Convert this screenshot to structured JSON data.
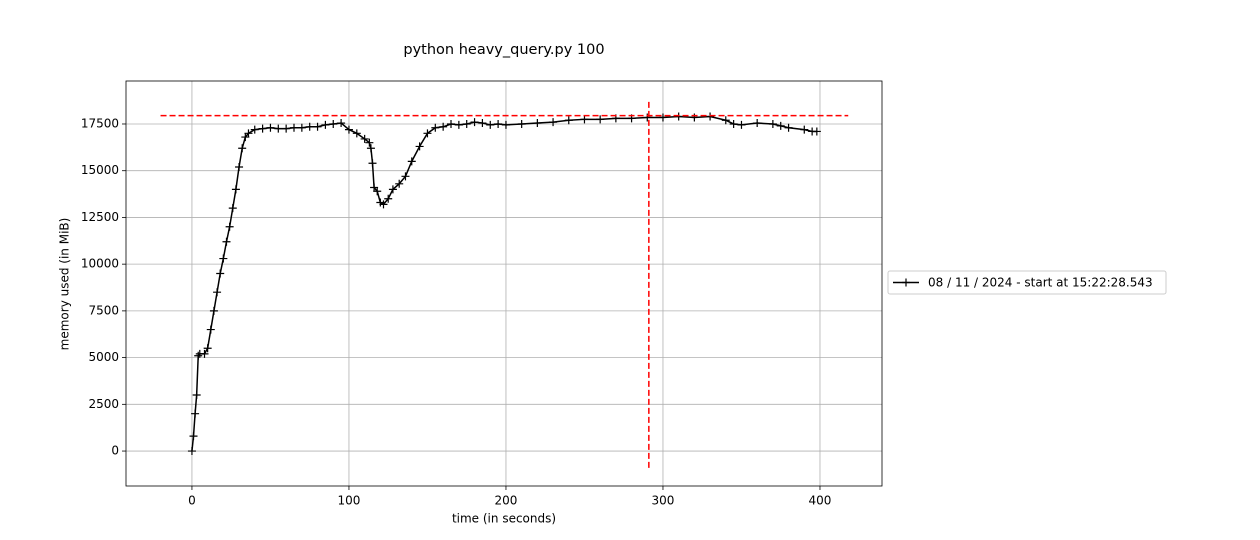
{
  "chart_data": {
    "type": "line",
    "title": "python heavy_query.py 100",
    "x_label": "time (in seconds)",
    "y_label": "memory used (in MiB)",
    "x": [
      0,
      1,
      2,
      3,
      4,
      5,
      8,
      10,
      12,
      14,
      16,
      18,
      20,
      22,
      24,
      26,
      28,
      30,
      32,
      34,
      36,
      40,
      45,
      50,
      55,
      60,
      65,
      70,
      75,
      80,
      85,
      90,
      95,
      100,
      105,
      110,
      113,
      114,
      115,
      116,
      118,
      120,
      122,
      125,
      128,
      132,
      136,
      140,
      145,
      150,
      155,
      160,
      165,
      170,
      175,
      180,
      185,
      190,
      195,
      200,
      210,
      220,
      230,
      240,
      250,
      260,
      270,
      280,
      290,
      300,
      310,
      320,
      330,
      340,
      345,
      350,
      360,
      370,
      375,
      380,
      390,
      395,
      398
    ],
    "series": [
      {
        "name": "08 / 11 / 2024 - start at 15:22:28.543",
        "color": "#000000",
        "values": [
          0,
          800,
          2000,
          3000,
          5100,
          5200,
          5200,
          5500,
          6500,
          7500,
          8500,
          9500,
          10300,
          11200,
          12000,
          13000,
          14000,
          15200,
          16200,
          16800,
          17000,
          17200,
          17250,
          17300,
          17250,
          17250,
          17300,
          17300,
          17350,
          17350,
          17450,
          17500,
          17550,
          17200,
          17000,
          16700,
          16500,
          16200,
          15400,
          14100,
          13900,
          13300,
          13200,
          13500,
          14000,
          14300,
          14700,
          15500,
          16300,
          17000,
          17300,
          17350,
          17500,
          17450,
          17500,
          17600,
          17550,
          17450,
          17500,
          17450,
          17500,
          17550,
          17600,
          17700,
          17750,
          17750,
          17800,
          17800,
          17850,
          17850,
          17900,
          17850,
          17900,
          17700,
          17500,
          17450,
          17550,
          17500,
          17400,
          17300,
          17200,
          17100,
          17100
        ]
      }
    ],
    "hline": {
      "y": 17950,
      "x": [
        -20,
        418
      ],
      "color": "#ff0000"
    },
    "vline": {
      "x": 291,
      "y": [
        -900,
        18800
      ],
      "color": "#ff0000"
    },
    "xlim": [
      -42,
      439.5
    ],
    "ylim": [
      -1870,
      19800
    ],
    "xticks": [
      0,
      100,
      200,
      300,
      400
    ],
    "yticks": [
      0,
      2500,
      5000,
      7500,
      10000,
      12500,
      15000,
      17500
    ],
    "grid": true,
    "legend_position": "right"
  }
}
